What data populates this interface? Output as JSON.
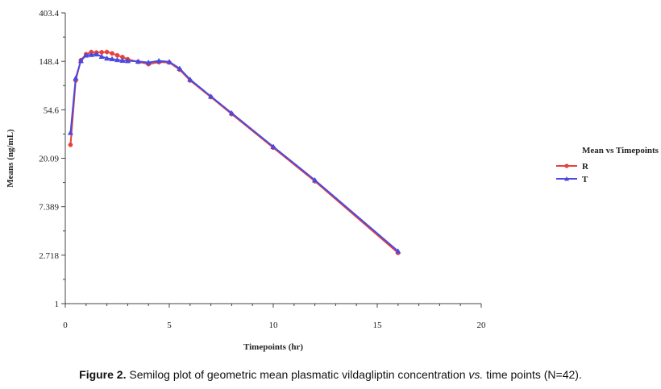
{
  "chart_data": {
    "type": "line",
    "xlabel": "Timepoints (hr)",
    "ylabel": "Means (ng/mL)",
    "y_scale": "log",
    "xlim": [
      0,
      20
    ],
    "ylim": [
      1,
      403.4
    ],
    "x_ticks": [
      "0",
      "5",
      "10",
      "15",
      "20"
    ],
    "x_tick_values": [
      0,
      5,
      10,
      15,
      20
    ],
    "y_ticks": [
      "1",
      "2.718",
      "7.389",
      "20.09",
      "54.6",
      "148.4",
      "403.4"
    ],
    "y_tick_values": [
      1,
      2.718,
      7.389,
      20.09,
      54.6,
      148.4,
      403.4
    ],
    "legend": {
      "title": "Mean vs Timepoints",
      "placement": "right"
    },
    "series": [
      {
        "name": "R",
        "color": "#e8413c",
        "marker": "circle",
        "x": [
          0.25,
          0.5,
          0.75,
          1.0,
          1.25,
          1.5,
          1.75,
          2.0,
          2.25,
          2.5,
          2.75,
          3.0,
          3.5,
          4.0,
          4.5,
          5.0,
          5.5,
          6.0,
          7.0,
          8.0,
          10.0,
          12.0,
          16.0
        ],
        "y": [
          26.5,
          100,
          152,
          172,
          180,
          178,
          179,
          180,
          175,
          168,
          162,
          155,
          147,
          140,
          146,
          145,
          125,
          100,
          71,
          50,
          25,
          12.5,
          2.85
        ]
      },
      {
        "name": "T",
        "color": "#4a4ae0",
        "marker": "triangle",
        "x": [
          0.25,
          0.5,
          0.75,
          1.0,
          1.25,
          1.5,
          1.75,
          2.0,
          2.25,
          2.5,
          2.75,
          3.0,
          3.5,
          4.0,
          4.5,
          5.0,
          5.5,
          6.0,
          7.0,
          8.0,
          10.0,
          12.0,
          16.0
        ],
        "y": [
          34,
          105,
          150,
          168,
          170,
          172,
          164,
          158,
          156,
          153,
          151,
          150,
          148,
          145,
          150,
          147,
          128,
          102,
          72,
          51,
          25.5,
          12.8,
          2.95
        ]
      }
    ]
  },
  "caption": {
    "label": "Figure 2.",
    "text_before": " Semilog plot of geometric mean plasmatic vildagliptin concentration ",
    "italic": "vs.",
    "text_after": " time points (N=42)."
  }
}
